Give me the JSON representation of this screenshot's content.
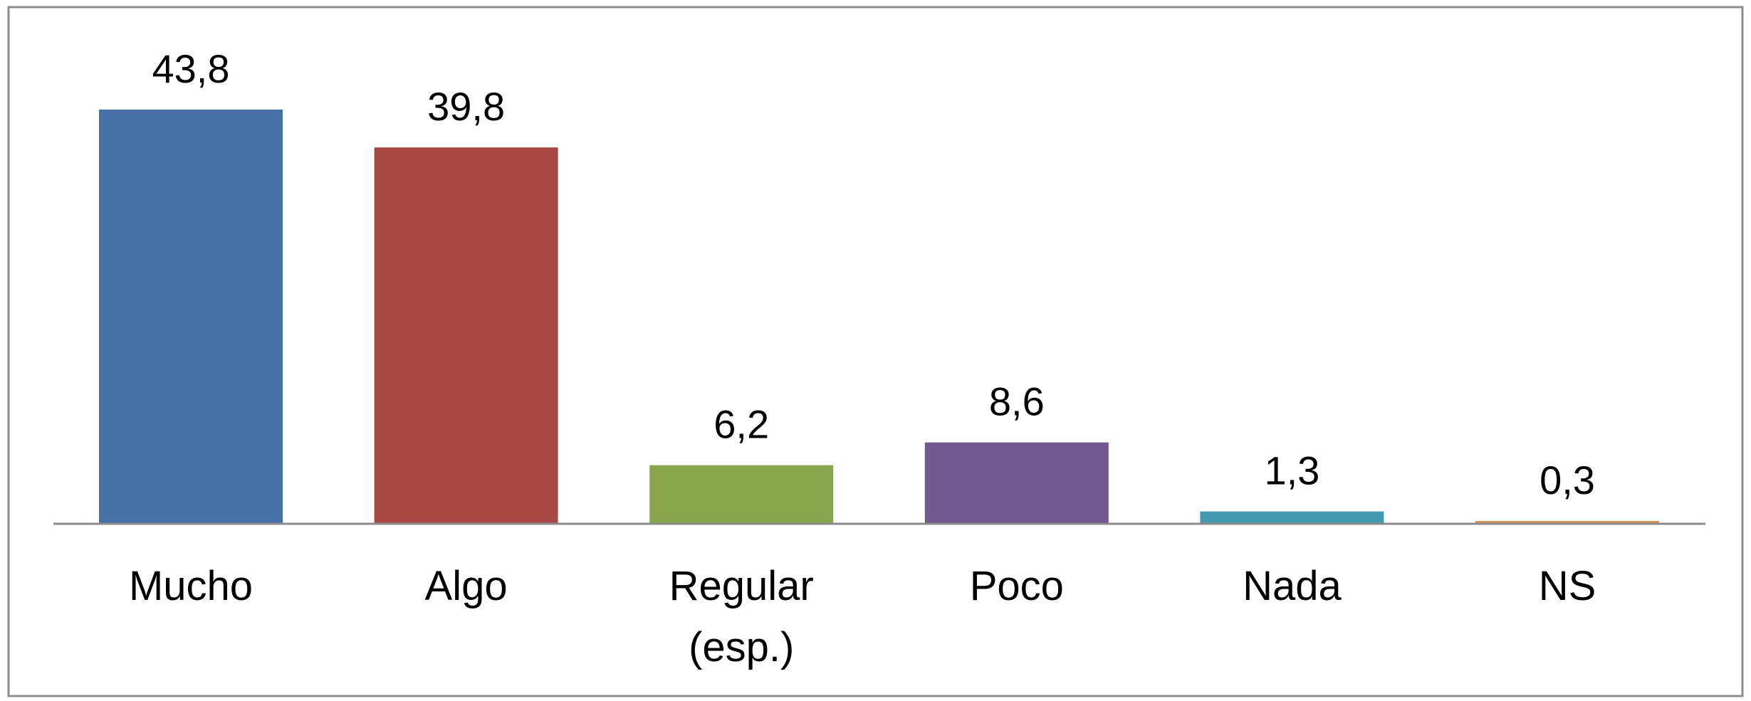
{
  "chart_data": {
    "type": "bar",
    "title": "",
    "xlabel": "",
    "ylabel": "",
    "categories": [
      [
        "Mucho"
      ],
      [
        "Algo"
      ],
      [
        "Regular",
        "(esp.)"
      ],
      [
        "Poco"
      ],
      [
        "Nada"
      ],
      [
        "NS"
      ]
    ],
    "values": [
      43.8,
      39.8,
      6.2,
      8.6,
      1.3,
      0.3
    ],
    "value_labels": [
      "43,8",
      "39,8",
      "6,2",
      "8,6",
      "1,3",
      "0,3"
    ],
    "colors": [
      "#4571A6",
      "#A84744",
      "#89A54D",
      "#71588F",
      "#4198AF",
      "#D9965B"
    ],
    "ylim": [
      0,
      43.8
    ],
    "grid": false,
    "legend": "none"
  }
}
